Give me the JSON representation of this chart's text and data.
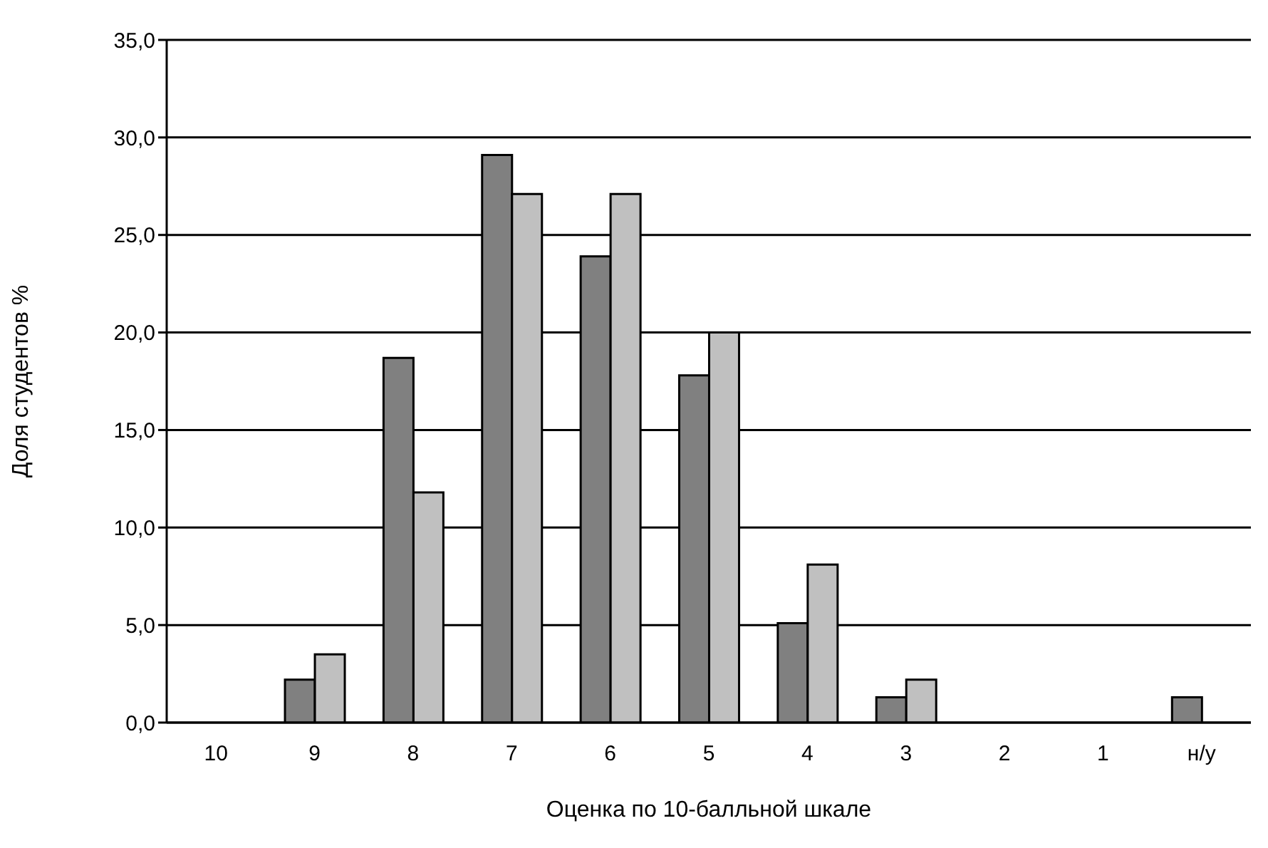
{
  "chart_data": {
    "type": "bar",
    "xlabel": "Оценка по 10-балльной шкале",
    "ylabel": "Доля студентов %",
    "categories": [
      "10",
      "9",
      "8",
      "7",
      "6",
      "5",
      "4",
      "3",
      "2",
      "1",
      "н/у"
    ],
    "series": [
      {
        "color": "#808080",
        "values": [
          null,
          2.2,
          18.7,
          29.1,
          23.9,
          17.8,
          5.1,
          1.3,
          null,
          null,
          1.3
        ]
      },
      {
        "color": "#c0c0c0",
        "values": [
          null,
          3.5,
          11.8,
          27.1,
          27.1,
          20.0,
          8.1,
          2.2,
          null,
          null,
          null
        ]
      }
    ],
    "ylim": [
      0,
      35
    ],
    "yticks": [
      {
        "value": 0,
        "label": "0,0"
      },
      {
        "value": 5,
        "label": "5,0"
      },
      {
        "value": 10,
        "label": "10,0"
      },
      {
        "value": 15,
        "label": "15,0"
      },
      {
        "value": 20,
        "label": "20,0"
      },
      {
        "value": 25,
        "label": "25,0"
      },
      {
        "value": 30,
        "label": "30,0"
      },
      {
        "value": 35,
        "label": "35,0"
      }
    ],
    "grid": "y",
    "legend": false
  }
}
